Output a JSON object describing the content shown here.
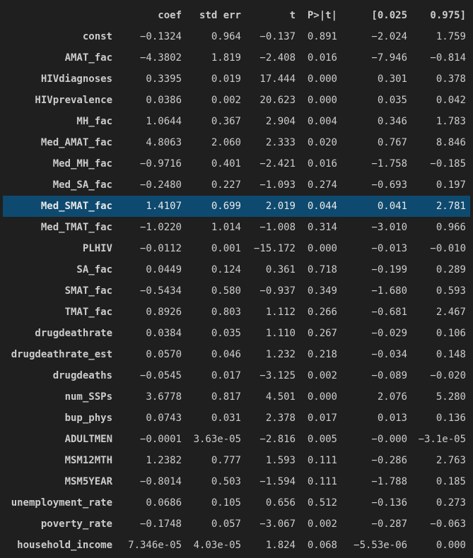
{
  "table": {
    "headers": [
      "",
      "coef",
      "std err",
      "t",
      "P>|t|",
      "[0.025",
      "0.975]"
    ],
    "highlight_color": "#0e4a6f",
    "highlighted_row": "Med_SMAT_fac",
    "rows": [
      {
        "name": "const",
        "coef": "−0.1324",
        "std_err": "0.964",
        "t": "−0.137",
        "p": "0.891",
        "lo": "−2.024",
        "hi": "1.759"
      },
      {
        "name": "AMAT_fac",
        "coef": "−4.3802",
        "std_err": "1.819",
        "t": "−2.408",
        "p": "0.016",
        "lo": "−7.946",
        "hi": "−0.814"
      },
      {
        "name": "HIVdiagnoses",
        "coef": "0.3395",
        "std_err": "0.019",
        "t": "17.444",
        "p": "0.000",
        "lo": "0.301",
        "hi": "0.378"
      },
      {
        "name": "HIVprevalence",
        "coef": "0.0386",
        "std_err": "0.002",
        "t": "20.623",
        "p": "0.000",
        "lo": "0.035",
        "hi": "0.042"
      },
      {
        "name": "MH_fac",
        "coef": "1.0644",
        "std_err": "0.367",
        "t": "2.904",
        "p": "0.004",
        "lo": "0.346",
        "hi": "1.783"
      },
      {
        "name": "Med_AMAT_fac",
        "coef": "4.8063",
        "std_err": "2.060",
        "t": "2.333",
        "p": "0.020",
        "lo": "0.767",
        "hi": "8.846"
      },
      {
        "name": "Med_MH_fac",
        "coef": "−0.9716",
        "std_err": "0.401",
        "t": "−2.421",
        "p": "0.016",
        "lo": "−1.758",
        "hi": "−0.185"
      },
      {
        "name": "Med_SA_fac",
        "coef": "−0.2480",
        "std_err": "0.227",
        "t": "−1.093",
        "p": "0.274",
        "lo": "−0.693",
        "hi": "0.197"
      },
      {
        "name": "Med_SMAT_fac",
        "coef": "1.4107",
        "std_err": "0.699",
        "t": "2.019",
        "p": "0.044",
        "lo": "0.041",
        "hi": "2.781"
      },
      {
        "name": "Med_TMAT_fac",
        "coef": "−1.0220",
        "std_err": "1.014",
        "t": "−1.008",
        "p": "0.314",
        "lo": "−3.010",
        "hi": "0.966"
      },
      {
        "name": "PLHIV",
        "coef": "−0.0112",
        "std_err": "0.001",
        "t": "−15.172",
        "p": "0.000",
        "lo": "−0.013",
        "hi": "−0.010"
      },
      {
        "name": "SA_fac",
        "coef": "0.0449",
        "std_err": "0.124",
        "t": "0.361",
        "p": "0.718",
        "lo": "−0.199",
        "hi": "0.289"
      },
      {
        "name": "SMAT_fac",
        "coef": "−0.5434",
        "std_err": "0.580",
        "t": "−0.937",
        "p": "0.349",
        "lo": "−1.680",
        "hi": "0.593"
      },
      {
        "name": "TMAT_fac",
        "coef": "0.8926",
        "std_err": "0.803",
        "t": "1.112",
        "p": "0.266",
        "lo": "−0.681",
        "hi": "2.467"
      },
      {
        "name": "drugdeathrate",
        "coef": "0.0384",
        "std_err": "0.035",
        "t": "1.110",
        "p": "0.267",
        "lo": "−0.029",
        "hi": "0.106"
      },
      {
        "name": "drugdeathrate_est",
        "coef": "0.0570",
        "std_err": "0.046",
        "t": "1.232",
        "p": "0.218",
        "lo": "−0.034",
        "hi": "0.148"
      },
      {
        "name": "drugdeaths",
        "coef": "−0.0545",
        "std_err": "0.017",
        "t": "−3.125",
        "p": "0.002",
        "lo": "−0.089",
        "hi": "−0.020"
      },
      {
        "name": "num_SSPs",
        "coef": "3.6778",
        "std_err": "0.817",
        "t": "4.501",
        "p": "0.000",
        "lo": "2.076",
        "hi": "5.280"
      },
      {
        "name": "bup_phys",
        "coef": "0.0743",
        "std_err": "0.031",
        "t": "2.378",
        "p": "0.017",
        "lo": "0.013",
        "hi": "0.136"
      },
      {
        "name": "ADULTMEN",
        "coef": "−0.0001",
        "std_err": "3.63e-05",
        "t": "−2.816",
        "p": "0.005",
        "lo": "−0.000",
        "hi": "−3.1e-05"
      },
      {
        "name": "MSM12MTH",
        "coef": "1.2382",
        "std_err": "0.777",
        "t": "1.593",
        "p": "0.111",
        "lo": "−0.286",
        "hi": "2.763"
      },
      {
        "name": "MSM5YEAR",
        "coef": "−0.8014",
        "std_err": "0.503",
        "t": "−1.594",
        "p": "0.111",
        "lo": "−1.788",
        "hi": "0.185"
      },
      {
        "name": "unemployment_rate",
        "coef": "0.0686",
        "std_err": "0.105",
        "t": "0.656",
        "p": "0.512",
        "lo": "−0.136",
        "hi": "0.273"
      },
      {
        "name": "poverty_rate",
        "coef": "−0.1748",
        "std_err": "0.057",
        "t": "−3.067",
        "p": "0.002",
        "lo": "−0.287",
        "hi": "−0.063"
      },
      {
        "name": "household_income",
        "coef": "7.346e-05",
        "std_err": "4.03e-05",
        "t": "1.824",
        "p": "0.068",
        "lo": "−5.53e-06",
        "hi": "0.000"
      }
    ]
  }
}
